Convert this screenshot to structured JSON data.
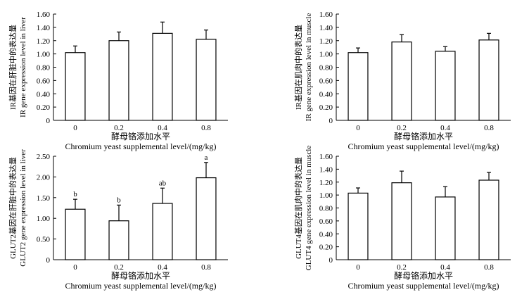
{
  "chart_data": [
    {
      "type": "bar",
      "categories": [
        "0",
        "0.2",
        "0.4",
        "0.8"
      ],
      "values": [
        1.02,
        1.2,
        1.31,
        1.22
      ],
      "errors": [
        0.1,
        0.13,
        0.17,
        0.14
      ],
      "ylim": [
        0,
        1.6
      ],
      "yticks": [
        "0",
        "0.20",
        "0.40",
        "0.60",
        "0.80",
        "1.00",
        "1.20",
        "1.40",
        "1.60"
      ],
      "xlabel_cn": "酵母铬添加水平",
      "xlabel_en": "Chromium yeast supplemental level/(mg/kg)",
      "ylabel_cn": "IR基因在肝脏中的表达量",
      "ylabel_en": "IR gene expression level in liver",
      "letters": []
    },
    {
      "type": "bar",
      "categories": [
        "0",
        "0.2",
        "0.4",
        "0.8"
      ],
      "values": [
        1.02,
        1.18,
        1.04,
        1.21
      ],
      "errors": [
        0.07,
        0.11,
        0.07,
        0.1
      ],
      "ylim": [
        0,
        1.6
      ],
      "yticks": [
        "0",
        "0.20",
        "0.40",
        "0.60",
        "0.80",
        "1.00",
        "1.20",
        "1.40",
        "1.60"
      ],
      "xlabel_cn": "酵母铬添加水平",
      "xlabel_en": "Chromium yeast supplemental level/(mg/kg)",
      "ylabel_cn": "IR基因在肌肉中的表达量",
      "ylabel_en": "IR gene expression level in muscle",
      "letters": []
    },
    {
      "type": "bar",
      "categories": [
        "0",
        "0.2",
        "0.4",
        "0.8"
      ],
      "values": [
        1.22,
        0.94,
        1.36,
        1.98
      ],
      "errors": [
        0.24,
        0.38,
        0.37,
        0.37
      ],
      "ylim": [
        0,
        2.5
      ],
      "yticks": [
        "0",
        "0.50",
        "1.00",
        "1.50",
        "2.00",
        "2.50"
      ],
      "xlabel_cn": "酵母铬添加水平",
      "xlabel_en": "Chromium yeast supplemental level/(mg/kg)",
      "ylabel_cn": "GLUT2基因在肝脏中的表达量",
      "ylabel_en": "GLUT2 gene expression level in liver",
      "letters": [
        "b",
        "b",
        "ab",
        "a"
      ]
    },
    {
      "type": "bar",
      "categories": [
        "0",
        "0.2",
        "0.4",
        "0.8"
      ],
      "values": [
        1.03,
        1.19,
        0.97,
        1.23
      ],
      "errors": [
        0.08,
        0.18,
        0.16,
        0.12
      ],
      "ylim": [
        0,
        1.6
      ],
      "yticks": [
        "0",
        "0.20",
        "0.40",
        "0.60",
        "0.80",
        "1.00",
        "1.20",
        "1.40",
        "1.60"
      ],
      "xlabel_cn": "酵母铬添加水平",
      "xlabel_en": "Chromium yeast supplemental level/(mg/kg)",
      "ylabel_cn": "GLUT4基因在肌肉中的表达量",
      "ylabel_en": "GLUT4 gene expression level in muscle",
      "letters": []
    }
  ]
}
